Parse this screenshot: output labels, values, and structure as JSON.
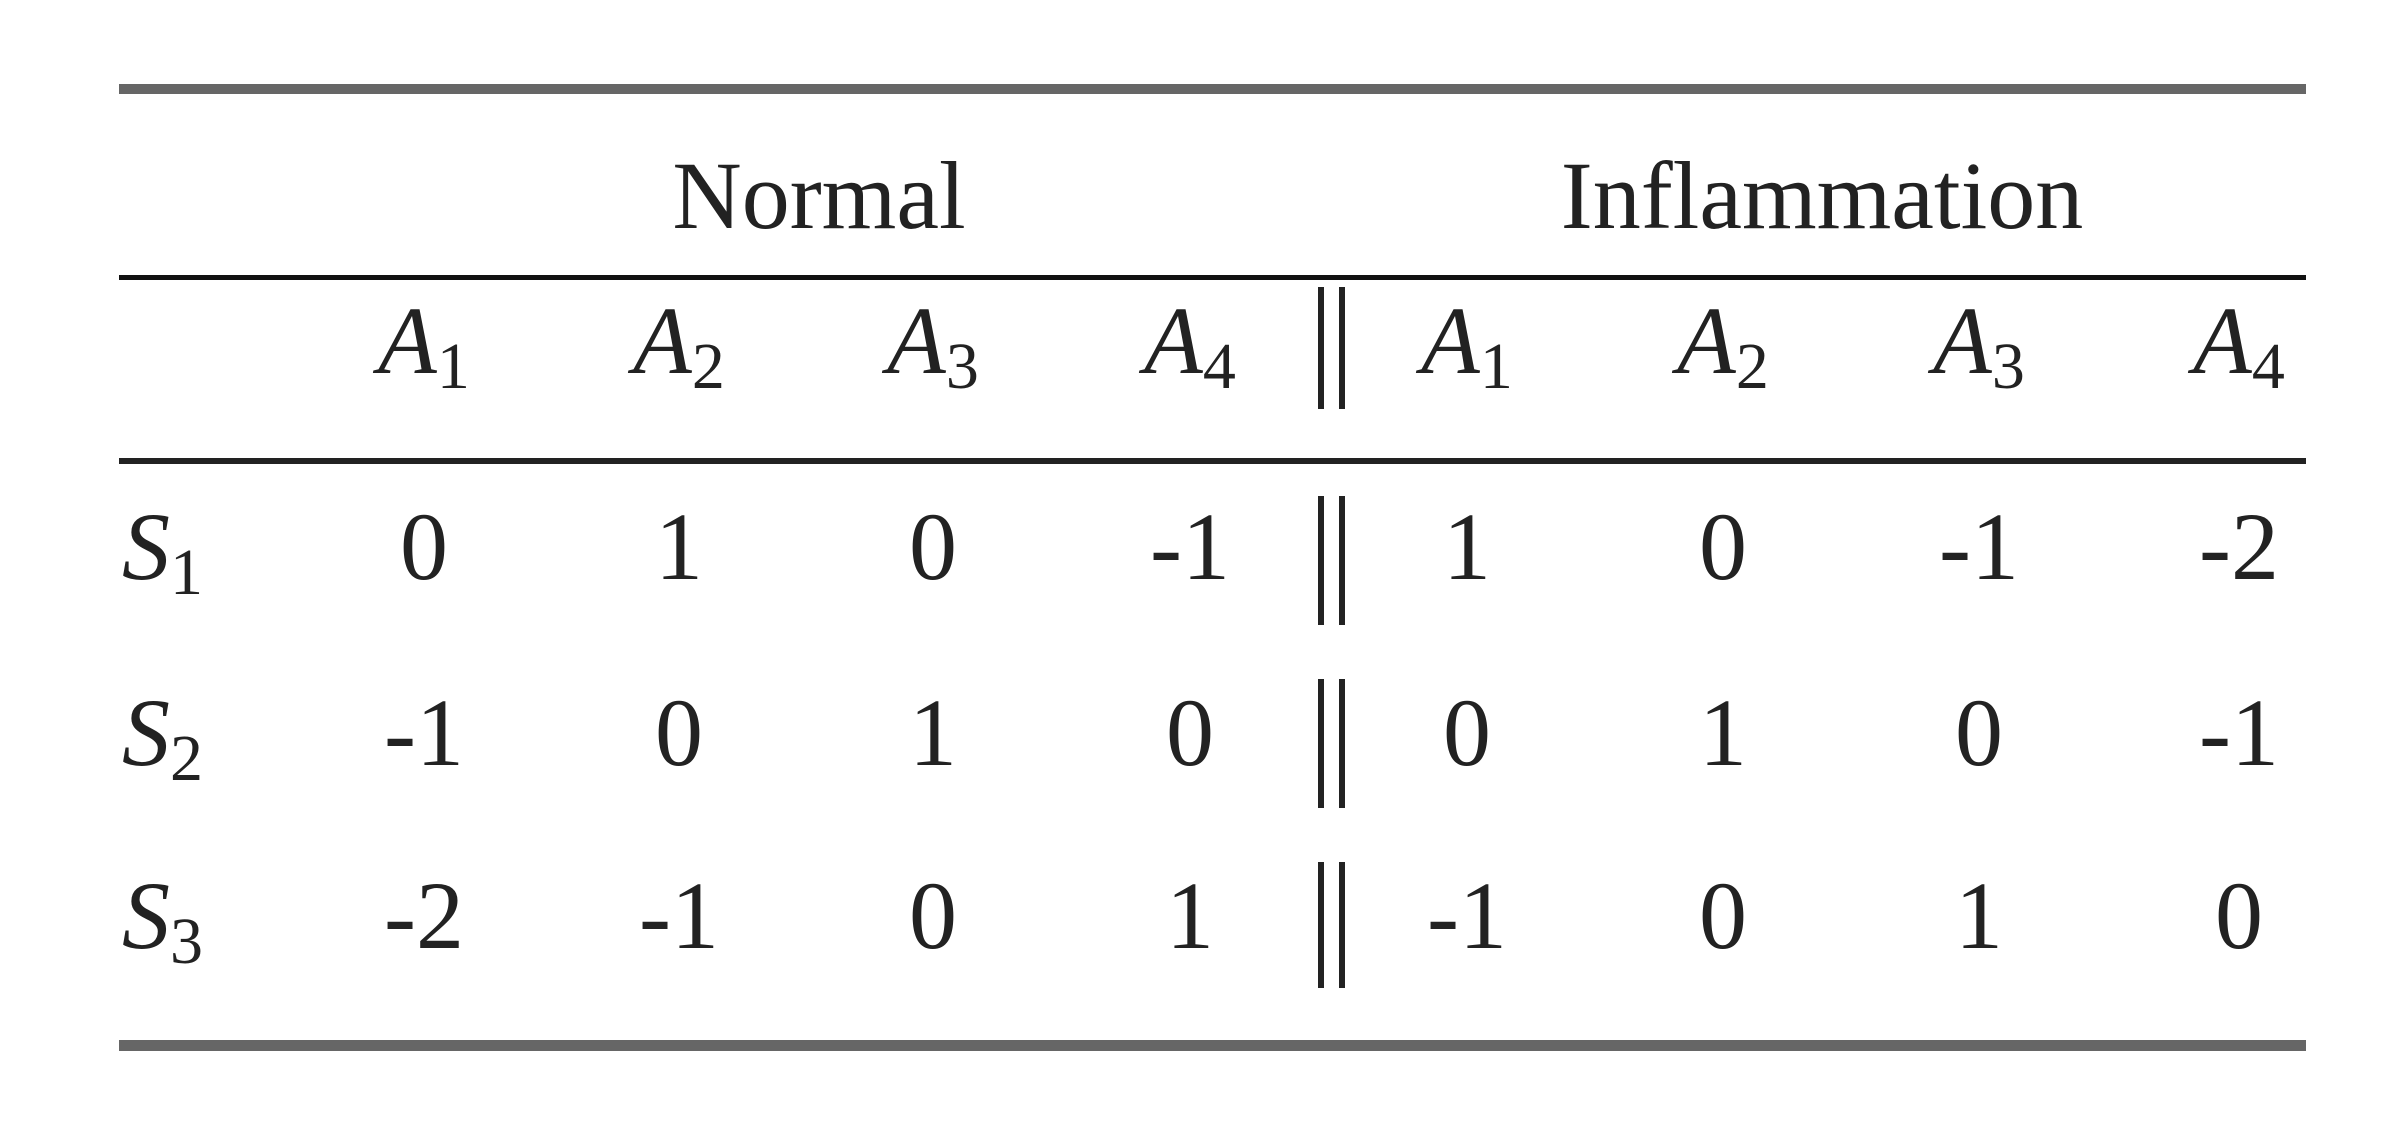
{
  "table": {
    "groups": [
      "Normal",
      "Inflammation"
    ],
    "columns": [
      {
        "base": "A",
        "sub": "1"
      },
      {
        "base": "A",
        "sub": "2"
      },
      {
        "base": "A",
        "sub": "3"
      },
      {
        "base": "A",
        "sub": "4"
      },
      {
        "base": "A",
        "sub": "1"
      },
      {
        "base": "A",
        "sub": "2"
      },
      {
        "base": "A",
        "sub": "3"
      },
      {
        "base": "A",
        "sub": "4"
      }
    ],
    "rows": [
      {
        "label": {
          "base": "S",
          "sub": "1"
        },
        "cells": [
          0,
          1,
          0,
          -1,
          1,
          0,
          -1,
          -2
        ]
      },
      {
        "label": {
          "base": "S",
          "sub": "2"
        },
        "cells": [
          -1,
          0,
          1,
          0,
          0,
          1,
          0,
          -1
        ]
      },
      {
        "label": {
          "base": "S",
          "sub": "3"
        },
        "cells": [
          -2,
          -1,
          0,
          1,
          -1,
          0,
          1,
          0
        ]
      }
    ]
  }
}
